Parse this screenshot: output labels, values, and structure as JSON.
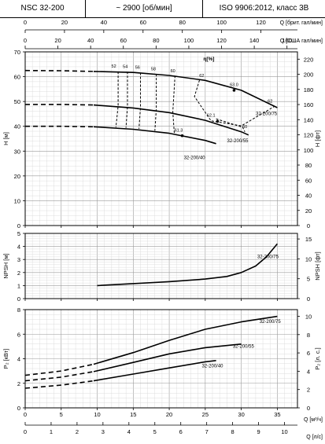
{
  "header": {
    "model": "NSC 32-200",
    "speed": "~ 2900 [об/мин]",
    "standard": "ISO 9906:2012, класс 3B"
  },
  "axes": {
    "top_uk": {
      "label": "Q [брит. гал/мин]",
      "ticks": [
        0,
        20,
        40,
        60,
        80,
        100,
        120
      ],
      "max": 138.6
    },
    "top_us": {
      "label": "Q [США гал/мин]",
      "ticks": [
        0,
        20,
        40,
        60,
        80,
        100,
        120,
        140,
        160
      ],
      "max": 166.4
    },
    "bottom_m3h": {
      "label": "Q [м³/ч]",
      "ticks": [
        0,
        5,
        10,
        15,
        20,
        25,
        30,
        35
      ]
    },
    "bottom_ls": {
      "label": "Q [л/с]",
      "ticks": [
        0,
        1,
        2,
        3,
        4,
        5,
        6,
        7,
        8,
        9,
        10
      ]
    },
    "head": {
      "left_label": "H [м]",
      "left_ticks": [
        0,
        10,
        20,
        30,
        40,
        50,
        60,
        70
      ],
      "right_label": "H [фт]",
      "right_ticks": [
        0,
        20,
        40,
        60,
        80,
        100,
        120,
        140,
        160,
        180,
        200,
        220
      ]
    },
    "npsh": {
      "left_label": "NPSH [м]",
      "left_ticks": [
        0,
        1,
        2,
        3,
        4,
        5
      ],
      "right_label": "NPSH [фт]",
      "right_ticks": [
        0,
        5,
        10,
        15
      ]
    },
    "power": {
      "left_label": "P₂ [кВт]",
      "left_ticks": [
        0,
        2,
        4,
        6,
        8
      ],
      "right_label": "P₂ [л. с.]",
      "right_ticks": [
        0,
        2,
        4,
        6,
        8,
        10
      ]
    }
  },
  "chart_data": {
    "type": "line",
    "x_unit": "m3/h",
    "head": {
      "ylim": [
        0,
        70
      ],
      "series": [
        {
          "name": "32-200/75",
          "dashed_part": [
            [
              0,
              62.5
            ],
            [
              5,
              62.4
            ],
            [
              9.5,
              62.1
            ]
          ],
          "solid_part": [
            [
              9.5,
              62.1
            ],
            [
              15,
              61.7
            ],
            [
              20,
              60.5
            ],
            [
              25,
              58.5
            ],
            [
              30,
              54.5
            ],
            [
              35,
              47.5
            ]
          ]
        },
        {
          "name": "32-200/55",
          "dashed_part": [
            [
              0,
              48.8
            ],
            [
              5,
              48.8
            ],
            [
              9.5,
              48.6
            ]
          ],
          "solid_part": [
            [
              9.5,
              48.6
            ],
            [
              15,
              47.4
            ],
            [
              20,
              45.5
            ],
            [
              25,
              42.4
            ],
            [
              30,
              37.8
            ],
            [
              31,
              36.5
            ]
          ]
        },
        {
          "name": "32-200/40",
          "dashed_part": [
            [
              0,
              40
            ],
            [
              5,
              40
            ],
            [
              9.5,
              39.8
            ]
          ],
          "solid_part": [
            [
              9.5,
              39.8
            ],
            [
              15,
              38.8
            ],
            [
              20,
              37.2
            ],
            [
              25,
              34.3
            ],
            [
              26.5,
              33
            ]
          ]
        }
      ],
      "efficiency_title": "η[%]",
      "efficiency_labels": [
        {
          "text": "52",
          "x": 12.3,
          "y": 63.7
        },
        {
          "text": "54",
          "x": 13.9,
          "y": 63.5
        },
        {
          "text": "56",
          "x": 15.6,
          "y": 63.2
        },
        {
          "text": "58",
          "x": 17.8,
          "y": 62.6
        },
        {
          "text": "60",
          "x": 20.5,
          "y": 61.7
        },
        {
          "text": "62",
          "x": 24.5,
          "y": 59.8
        },
        {
          "text": "63.0",
          "x": 29,
          "y": 56.2
        },
        {
          "text": "62",
          "x": 34,
          "y": 49.5
        },
        {
          "text": "62.1",
          "x": 25.8,
          "y": 43.8
        },
        {
          "text": "60",
          "x": 30.5,
          "y": 39.3
        },
        {
          "text": "61.3",
          "x": 21.3,
          "y": 37.8
        }
      ],
      "efficiency_contours": [
        [
          [
            12.9,
            62
          ],
          [
            12.9,
            48.2
          ],
          [
            12.6,
            39.6
          ]
        ],
        [
          [
            14.2,
            62
          ],
          [
            14.2,
            47.9
          ],
          [
            14,
            39.4
          ]
        ],
        [
          [
            16,
            61.6
          ],
          [
            16,
            47.6
          ],
          [
            15.8,
            39
          ]
        ],
        [
          [
            18.2,
            61.1
          ],
          [
            18.2,
            46.8
          ],
          [
            18,
            38.2
          ]
        ],
        [
          [
            20.8,
            60.4
          ],
          [
            20.5,
            45.8
          ],
          [
            20.7,
            37.1
          ]
        ],
        [
          [
            24.2,
            58.6
          ],
          [
            23.5,
            52
          ],
          [
            25.8,
            42.2
          ],
          [
            30,
            40.2
          ],
          [
            34.6,
            48
          ]
        ],
        [
          [
            26.5,
            43
          ],
          [
            30.2,
            39.6
          ],
          [
            30.5,
            37.8
          ]
        ]
      ],
      "bep_markers": [
        [
          29,
          54.5
        ],
        [
          26.7,
          42
        ],
        [
          21.8,
          36.2
        ]
      ],
      "curve_labels": [
        {
          "text": "32-200/75",
          "x": 33.5,
          "y": 44.5
        },
        {
          "text": "32-200/55",
          "x": 29.5,
          "y": 33.5
        },
        {
          "text": "32-200/40",
          "x": 23.5,
          "y": 26.7
        }
      ]
    },
    "npsh": {
      "ylim": [
        0,
        5
      ],
      "series": [
        {
          "name": "32-200/75",
          "points": [
            [
              10,
              1
            ],
            [
              15,
              1.15
            ],
            [
              20,
              1.3
            ],
            [
              25,
              1.5
            ],
            [
              28,
              1.7
            ],
            [
              30,
              2.0
            ],
            [
              32,
              2.5
            ],
            [
              33.5,
              3.2
            ],
            [
              35,
              4.2
            ]
          ]
        }
      ],
      "curve_label": {
        "text": "32-200/75",
        "x": 33.7,
        "y": 3.1
      }
    },
    "power": {
      "ylim": [
        0,
        8
      ],
      "series": [
        {
          "name": "32-200/75",
          "dashed_part": [
            [
              0,
              2.65
            ],
            [
              5,
              3.0
            ],
            [
              9.5,
              3.55
            ]
          ],
          "solid_part": [
            [
              9.5,
              3.55
            ],
            [
              15,
              4.5
            ],
            [
              20,
              5.5
            ],
            [
              25,
              6.4
            ],
            [
              30,
              7.0
            ],
            [
              35,
              7.45
            ]
          ]
        },
        {
          "name": "32-200/55",
          "dashed_part": [
            [
              0,
              2.2
            ],
            [
              5,
              2.5
            ],
            [
              9.5,
              2.95
            ]
          ],
          "solid_part": [
            [
              9.5,
              2.95
            ],
            [
              15,
              3.7
            ],
            [
              20,
              4.4
            ],
            [
              25,
              4.9
            ],
            [
              30,
              5.2
            ]
          ]
        },
        {
          "name": "32-200/40",
          "dashed_part": [
            [
              0,
              1.6
            ],
            [
              5,
              1.85
            ],
            [
              9.5,
              2.2
            ]
          ],
          "solid_part": [
            [
              9.5,
              2.2
            ],
            [
              15,
              2.75
            ],
            [
              20,
              3.25
            ],
            [
              25,
              3.75
            ],
            [
              26.5,
              3.85
            ]
          ]
        }
      ],
      "curve_labels": [
        {
          "text": "32-200/75",
          "x": 34,
          "y": 6.9
        },
        {
          "text": "32-200/55",
          "x": 30.3,
          "y": 4.9
        },
        {
          "text": "32-200/40",
          "x": 26,
          "y": 3.3
        }
      ]
    }
  },
  "colors": {
    "grid": "#d6d6d6",
    "grid_major": "#9a9a9a",
    "line": "#000000"
  }
}
